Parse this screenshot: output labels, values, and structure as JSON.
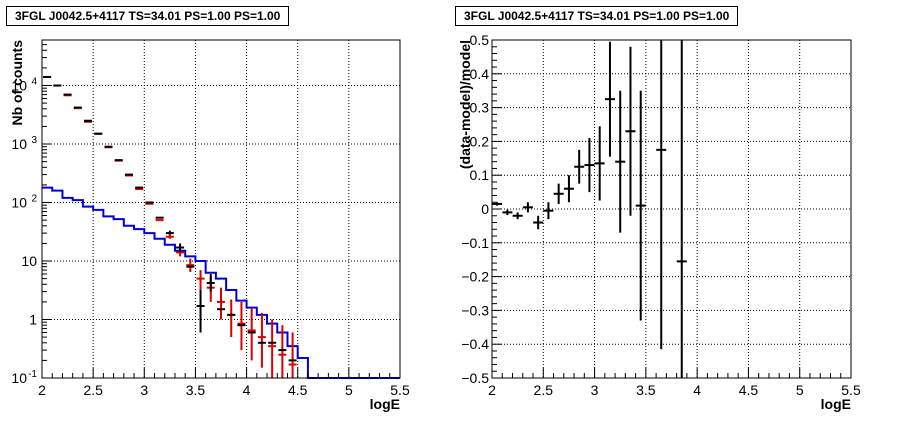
{
  "chart_data": [
    {
      "type": "line",
      "title": "3FGL J0042.5+4117 TS=34.01 PS=1.00 PS=1.00",
      "xlabel": "logE",
      "ylabel": "Nb of counts",
      "xlim": [
        2,
        5.5
      ],
      "ylim": [
        0.1,
        60000
      ],
      "yscale": "log",
      "grid": true,
      "x_ticks": [
        "2",
        "2.5",
        "3",
        "3.5",
        "4",
        "4.5",
        "5",
        "5.5"
      ],
      "y_ticks": [
        {
          "value": 0.1,
          "label": "10",
          "exp": "-1"
        },
        {
          "value": 1,
          "label": "1",
          "exp": ""
        },
        {
          "value": 10,
          "label": "10",
          "exp": ""
        },
        {
          "value": 100,
          "label": "10",
          "exp": "2"
        },
        {
          "value": 1000,
          "label": "10",
          "exp": "3"
        },
        {
          "value": 10000,
          "label": "10",
          "exp": "4"
        }
      ],
      "colors": {
        "data": "#000000",
        "model": "#dd0000",
        "ps_model": "#0000dd"
      },
      "series": [
        {
          "key": "data",
          "x": [
            2.05,
            2.15,
            2.25,
            2.35,
            2.45,
            2.55,
            2.65,
            2.75,
            2.85,
            2.95,
            3.05,
            3.15,
            3.25,
            3.35,
            3.45,
            3.55,
            3.65,
            3.75,
            3.85,
            3.95,
            4.05,
            4.15,
            4.25,
            4.35,
            4.45
          ],
          "y": [
            14000,
            10000,
            7000,
            4200,
            2500,
            1500,
            900,
            530,
            300,
            180,
            100,
            55,
            30,
            17,
            8,
            1.7,
            4.2,
            1.5,
            1.2,
            0.8,
            0.6,
            0.4,
            0.4,
            0.3,
            0.2
          ],
          "ylow": [
            14000,
            10000,
            7000,
            4200,
            2500,
            1500,
            900,
            530,
            300,
            180,
            100,
            55,
            28,
            14,
            8,
            0.6,
            3,
            1.5,
            1.2,
            0.8,
            0.6,
            0.4,
            0.4,
            0.3,
            0.2
          ],
          "yhigh": [
            14000,
            10000,
            7000,
            4200,
            2500,
            1500,
            900,
            530,
            300,
            180,
            100,
            55,
            33,
            20,
            8,
            3.2,
            6,
            1.5,
            1.2,
            0.8,
            0.6,
            0.4,
            0.4,
            0.3,
            0.2
          ]
        },
        {
          "key": "model",
          "x": [
            2.05,
            2.15,
            2.25,
            2.35,
            2.45,
            2.55,
            2.65,
            2.75,
            2.85,
            2.95,
            3.05,
            3.15,
            3.25,
            3.35,
            3.45,
            3.55,
            3.65,
            3.75,
            3.85,
            3.95,
            4.05,
            4.15,
            4.25,
            4.35,
            4.45
          ],
          "y": [
            14000,
            10000,
            6800,
            4100,
            2400,
            1500,
            880,
            520,
            290,
            170,
            95,
            50,
            26,
            14,
            8.5,
            5,
            3.5,
            2,
            1.2,
            0.85,
            0.65,
            0.5,
            0.35,
            0.25,
            0.17
          ],
          "ylow": [
            14000,
            10000,
            6800,
            4100,
            2400,
            1500,
            880,
            520,
            290,
            170,
            95,
            50,
            24,
            12,
            6.5,
            3,
            2,
            1,
            0.5,
            0.3,
            0.2,
            0.15,
            0.1,
            0.1,
            0.1
          ],
          "yhigh": [
            14000,
            10000,
            6800,
            4100,
            2400,
            1500,
            880,
            520,
            290,
            170,
            95,
            50,
            28,
            16,
            11,
            7,
            5.5,
            3.5,
            2.2,
            2,
            1.6,
            1.3,
            1,
            0.8,
            0.6
          ]
        },
        {
          "key": "ps_model",
          "type": "step",
          "edges": [
            2.0,
            2.1,
            2.2,
            2.3,
            2.4,
            2.5,
            2.6,
            2.7,
            2.8,
            2.9,
            3.0,
            3.1,
            3.2,
            3.3,
            3.4,
            3.5,
            3.6,
            3.7,
            3.8,
            3.9,
            4.0,
            4.1,
            4.2,
            4.3,
            4.4,
            4.5,
            4.6,
            4.7,
            4.8,
            4.9,
            5.0,
            5.1,
            5.2,
            5.3,
            5.4,
            5.5
          ],
          "y": [
            180,
            160,
            120,
            110,
            85,
            75,
            58,
            52,
            40,
            35,
            30,
            24,
            19,
            15,
            12,
            10,
            6.3,
            5,
            3.2,
            2.1,
            1.6,
            1.2,
            0.85,
            0.6,
            0.35,
            0.22,
            0.1,
            0.1,
            0.1,
            0.1,
            0.1,
            0.1,
            0.1,
            0.1,
            0.1
          ]
        }
      ]
    },
    {
      "type": "scatter",
      "title": "3FGL J0042.5+4117 TS=34.01 PS=1.00 PS=1.00",
      "xlabel": "logE",
      "ylabel": "(data-model)/model",
      "xlim": [
        2,
        5.5
      ],
      "ylim": [
        -0.5,
        0.5
      ],
      "grid": true,
      "x_ticks": [
        "2",
        "2.5",
        "3",
        "3.5",
        "4",
        "4.5",
        "5",
        "5.5"
      ],
      "y_ticks": [
        "−0.5",
        "−0.4",
        "−0.3",
        "−0.2",
        "−0.1",
        "0",
        "0.1",
        "0.2",
        "0.3",
        "0.4",
        "0.5"
      ],
      "colors": {
        "points": "#000000"
      },
      "series": [
        {
          "x": [
            2.05,
            2.15,
            2.25,
            2.35,
            2.45,
            2.55,
            2.65,
            2.75,
            2.85,
            2.95,
            3.05,
            3.15,
            3.25,
            3.35,
            3.45,
            3.65,
            3.85
          ],
          "y": [
            0.015,
            -0.01,
            -0.02,
            0.005,
            -0.04,
            -0.005,
            0.045,
            0.06,
            0.125,
            0.13,
            0.135,
            0.325,
            0.14,
            0.23,
            0.01,
            0.175,
            -0.155
          ],
          "err": [
            0.005,
            0.008,
            0.01,
            0.015,
            0.02,
            0.025,
            0.03,
            0.04,
            0.05,
            0.08,
            0.11,
            0.17,
            0.21,
            0.25,
            0.34,
            0.59,
            0.7
          ]
        }
      ]
    }
  ]
}
